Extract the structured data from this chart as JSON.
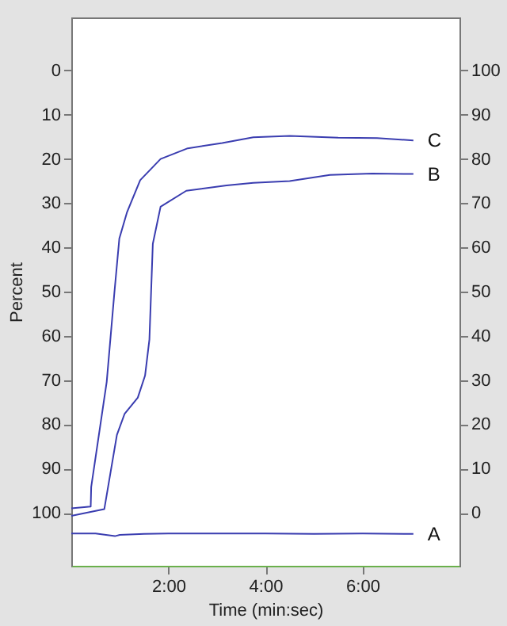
{
  "chart_data": {
    "type": "line",
    "xlabel": "Time (min:sec)",
    "ylabel": "Percent",
    "xlim": [
      0,
      8
    ],
    "xticks": [
      {
        "value": 2,
        "label": "2:00"
      },
      {
        "value": 4,
        "label": "4:00"
      },
      {
        "value": 6,
        "label": "6:00"
      }
    ],
    "ylim": [
      112,
      -12
    ],
    "yticks": [
      0,
      10,
      20,
      30,
      40,
      50,
      60,
      70,
      80,
      90,
      100
    ],
    "y2lim": [
      -12,
      112
    ],
    "y2ticks": [
      0,
      10,
      20,
      30,
      40,
      50,
      60,
      70,
      80,
      90,
      100
    ],
    "grid": false,
    "legend": false,
    "marker": "none",
    "line_style": "solid",
    "series": [
      {
        "name": "A",
        "color": "#3a3db0",
        "x": [
          0,
          0.5,
          0.9,
          1.0,
          1.5,
          2,
          3,
          4,
          5,
          6,
          7.05
        ],
        "values": [
          104.7,
          104.7,
          105.3,
          105,
          104.8,
          104.7,
          104.7,
          104.7,
          104.8,
          104.7,
          104.8
        ]
      },
      {
        "name": "C",
        "color": "#3a3db0",
        "x": [
          0,
          0.4,
          0.41,
          0.73,
          0.89,
          0.99,
          1.15,
          1.42,
          1.84,
          2.4,
          3.11,
          3.75,
          4.5,
          5.5,
          6.3,
          7.05
        ],
        "values": [
          99,
          98.6,
          94.2,
          70.4,
          50,
          38,
          32,
          24.8,
          20,
          17.6,
          16.4,
          15.1,
          14.8,
          15.2,
          15.3,
          15.8
        ]
      },
      {
        "name": "B",
        "color": "#3a3db0",
        "x": [
          0,
          0.68,
          0.94,
          1.1,
          1.37,
          1.52,
          1.61,
          1.68,
          1.84,
          2.37,
          3.2,
          3.75,
          4.5,
          5.33,
          6.2,
          7.05
        ],
        "values": [
          100.7,
          99.2,
          82.4,
          77.6,
          74,
          69,
          60.8,
          39.2,
          30.8,
          27.2,
          26,
          25.4,
          25,
          23.6,
          23.3,
          23.4
        ]
      }
    ]
  }
}
